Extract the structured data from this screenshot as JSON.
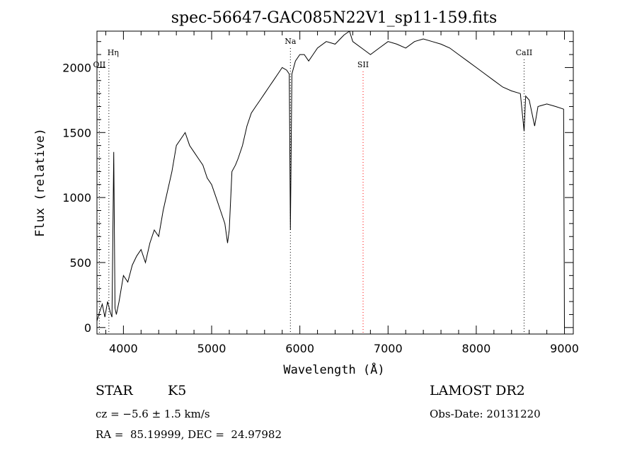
{
  "chart_data": {
    "type": "line",
    "title": "spec-56647-GAC085N22V1_sp11-159.fits",
    "xlabel": "Wavelength (Å)",
    "ylabel": "Flux (relative)",
    "xlim": [
      3700,
      9100
    ],
    "ylim": [
      -50,
      2280
    ],
    "x_ticks": [
      4000,
      5000,
      6000,
      7000,
      8000,
      9000
    ],
    "y_ticks": [
      0,
      500,
      1000,
      1500,
      2000
    ],
    "grid": false,
    "line_markers": [
      {
        "label": "OII",
        "x": 3727,
        "color": "#000000"
      },
      {
        "label": "Hη",
        "x": 3835,
        "color": "#000000"
      },
      {
        "label": "Na",
        "x": 5893,
        "color": "#000000"
      },
      {
        "label": "SII",
        "x": 6717,
        "color": "#ff0000"
      },
      {
        "label": "CaII",
        "x": 8542,
        "color": "#000000"
      }
    ],
    "series": [
      {
        "x": [
          3700,
          3730,
          3760,
          3790,
          3820,
          3850,
          3870,
          3890,
          3905,
          3920,
          3950,
          4000,
          4050,
          4100,
          4150,
          4200,
          4250,
          4300,
          4350,
          4400,
          4450,
          4500,
          4550,
          4600,
          4650,
          4700,
          4750,
          4800,
          4850,
          4900,
          4950,
          5000,
          5050,
          5100,
          5150,
          5180,
          5200,
          5230,
          5270,
          5300,
          5350,
          5400,
          5450,
          5500,
          5550,
          5600,
          5650,
          5700,
          5750,
          5800,
          5850,
          5880,
          5893,
          5910,
          5950,
          6000,
          6050,
          6100,
          6150,
          6200,
          6300,
          6400,
          6500,
          6563,
          6600,
          6700,
          6800,
          6900,
          7000,
          7100,
          7200,
          7300,
          7400,
          7500,
          7600,
          7700,
          7800,
          7900,
          8000,
          8100,
          8200,
          8300,
          8400,
          8500,
          8542,
          8560,
          8600,
          8662,
          8700,
          8800,
          8900,
          8990,
          9000
        ],
        "y": [
          50,
          120,
          180,
          80,
          200,
          120,
          80,
          1350,
          150,
          100,
          200,
          400,
          350,
          480,
          550,
          600,
          500,
          650,
          750,
          700,
          900,
          1050,
          1200,
          1400,
          1450,
          1500,
          1400,
          1350,
          1300,
          1250,
          1150,
          1100,
          1000,
          900,
          800,
          650,
          750,
          1200,
          1250,
          1300,
          1400,
          1550,
          1650,
          1700,
          1750,
          1800,
          1850,
          1900,
          1950,
          2000,
          1980,
          1950,
          750,
          1950,
          2050,
          2100,
          2100,
          2050,
          2100,
          2150,
          2200,
          2180,
          2250,
          2280,
          2200,
          2150,
          2100,
          2150,
          2200,
          2180,
          2150,
          2200,
          2220,
          2200,
          2180,
          2150,
          2100,
          2050,
          2000,
          1950,
          1900,
          1850,
          1820,
          1800,
          1510,
          1780,
          1750,
          1550,
          1700,
          1720,
          1700,
          1680,
          0
        ]
      }
    ]
  },
  "info": {
    "object_class": "STAR",
    "subclass": "K5",
    "survey": "LAMOST DR2",
    "cz": "cz = −5.6 ± 1.5 km/s",
    "obs_date": "Obs-Date: 20131220",
    "coords": "RA =  85.19999, DEC =  24.97982"
  }
}
